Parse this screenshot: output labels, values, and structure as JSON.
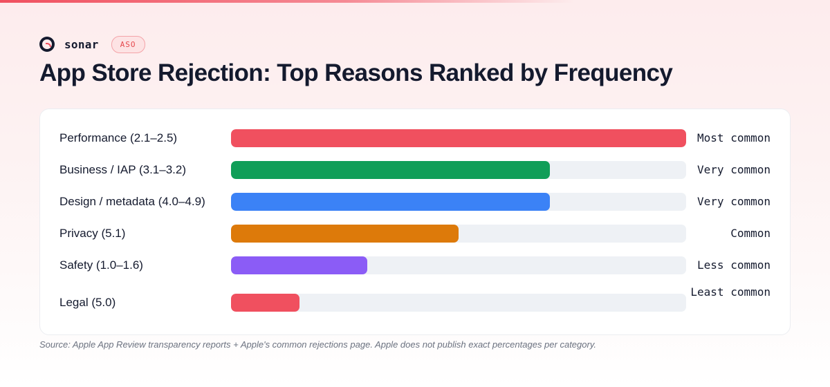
{
  "brand": {
    "name": "sonar",
    "badge": "ASO",
    "logo_icon": "sonar-logo-icon"
  },
  "header": {
    "title": "App Store Rejection: Top Reasons Ranked by Frequency"
  },
  "chart_data": {
    "type": "bar",
    "orientation": "horizontal",
    "title": "App Store Rejection: Top Reasons Ranked by Frequency",
    "xlim": [
      0,
      100
    ],
    "grid": false,
    "legend": "none",
    "rows": [
      {
        "label": "Performance (2.1–2.5)",
        "value": 100,
        "rank": "Most common",
        "color": "#f0505f"
      },
      {
        "label": "Business / IAP (3.1–3.2)",
        "value": 70,
        "rank": "Very common",
        "color": "#109e58"
      },
      {
        "label": "Design / metadata (4.0–4.9)",
        "value": 70,
        "rank": "Very common",
        "color": "#3b82f6"
      },
      {
        "label": "Privacy (5.1)",
        "value": 50,
        "rank": "Common",
        "color": "#dd7a0a"
      },
      {
        "label": "Safety (1.0–1.6)",
        "value": 30,
        "rank": "Less common",
        "color": "#8b5cf6"
      },
      {
        "label": "Legal (5.0)",
        "value": 15,
        "rank": "Least common",
        "color": "#f0505f"
      }
    ]
  },
  "footer": {
    "source": "Source: Apple App Review transparency reports + Apple's common rejections page. Apple does not publish exact percentages per category."
  }
}
